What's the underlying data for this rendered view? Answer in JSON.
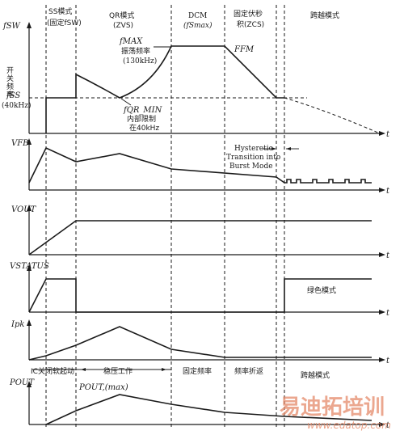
{
  "header": {
    "ss_mode": "SS模式",
    "ss_fixed": "(固定fSW)",
    "qr_mode": "QR模式",
    "qr_zvs": "(ZVS)",
    "dcm": "DCM",
    "dcm_sub": "(fSmax)",
    "fixed_volt_sec": "固定伏秒",
    "volt_sec_zcs": "积(ZCS)",
    "burst_mode": "跨越模式"
  },
  "panel1": {
    "ylabel": "fSW",
    "ylabel_cn_1": "开",
    "ylabel_cn_2": "关",
    "ylabel_cn_3": "频",
    "ylabel_cn_4": "率",
    "fss": "fSS",
    "fss_val": "(40kHz)",
    "fmax": "fMAX",
    "fmax_cn": "振荡频率",
    "fmax_val": "(130kHz)",
    "ffm": "FFM",
    "fqr_min": "fQR_MIN",
    "fqr_cn1": "内部限制",
    "fqr_cn2": "在40kHz",
    "t": "t"
  },
  "panel2": {
    "ylabel": "VFB",
    "hyst1": "Hysteretic",
    "hyst2": "Transition into",
    "hyst3": "Burst Mode",
    "t": "t"
  },
  "panel3": {
    "ylabel": "VOUT",
    "t": "t"
  },
  "panel4": {
    "ylabel": "VSTATUS",
    "green_mode": "绿色模式",
    "t": "t"
  },
  "panel5": {
    "ylabel": "Ipk",
    "t": "t",
    "phase_ic": "IC关闭软起动",
    "phase_reg": "稳压工作",
    "phase_fixed": "固定频率",
    "phase_fold": "频率折返",
    "phase_burst": "跨越模式"
  },
  "panel6": {
    "ylabel": "POUT",
    "pmax": "POUT,(max)",
    "t": "t"
  },
  "watermark": {
    "brand": "易迪拓培训",
    "url": "www.edatop.com"
  }
}
